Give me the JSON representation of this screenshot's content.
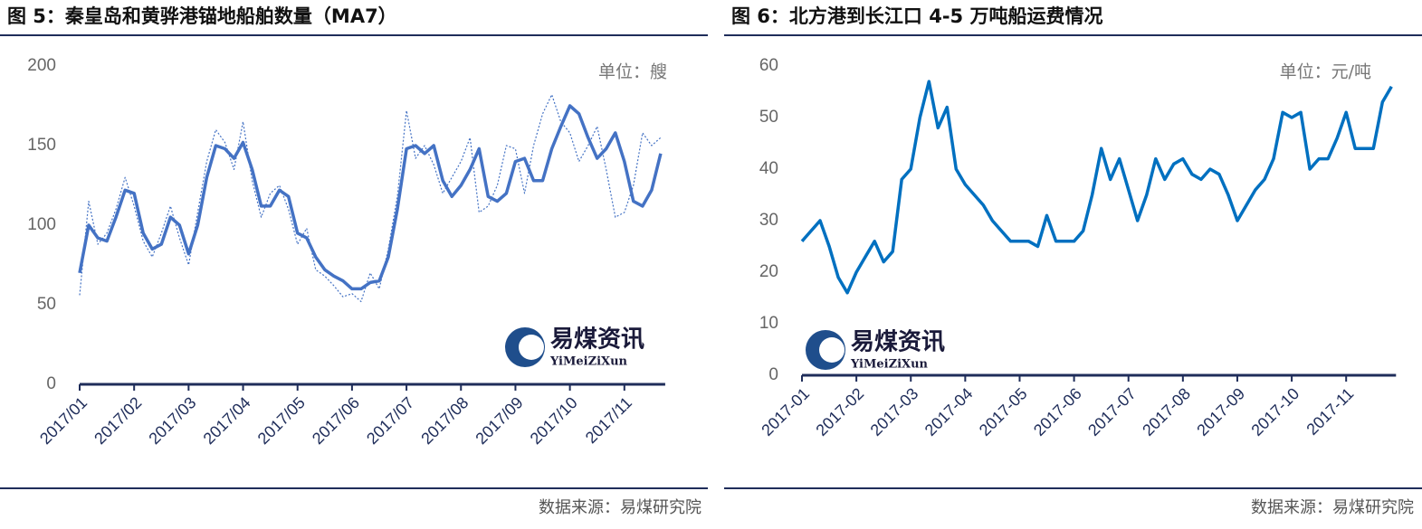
{
  "chart_data": [
    {
      "type": "line",
      "title": "图 5：秦皇岛和黄骅港锚地船舶数量（MA7）",
      "unit": "单位：艘",
      "watermark": "易煤资讯",
      "watermark_sub": "YiMeiZiXun",
      "source": "数据来源：易煤研究院",
      "categories": [
        "2017/01",
        null,
        null,
        null,
        null,
        null,
        "2017/02",
        null,
        null,
        null,
        null,
        null,
        "2017/03",
        null,
        null,
        null,
        null,
        null,
        "2017/04",
        null,
        null,
        null,
        null,
        null,
        "2017/05",
        null,
        null,
        null,
        null,
        null,
        "2017/06",
        null,
        null,
        null,
        null,
        null,
        "2017/07",
        null,
        null,
        null,
        null,
        null,
        "2017/08",
        null,
        null,
        null,
        null,
        null,
        "2017/09",
        null,
        null,
        null,
        null,
        null,
        "2017/10",
        null,
        null,
        null,
        null,
        null,
        "2017/11",
        null,
        null,
        null,
        null
      ],
      "ylim": [
        0,
        200
      ],
      "yticks": [
        0,
        50,
        100,
        150,
        200
      ],
      "series": [
        {
          "color": "#4472c4",
          "style": "dotted",
          "values": [
            56,
            115,
            88,
            95,
            110,
            130,
            112,
            90,
            80,
            95,
            112,
            92,
            75,
            108,
            140,
            160,
            152,
            135,
            165,
            128,
            105,
            120,
            125,
            110,
            88,
            98,
            72,
            68,
            62,
            55,
            57,
            52,
            70,
            60,
            85,
            118,
            172,
            142,
            150,
            138,
            120,
            130,
            140,
            155,
            108,
            112,
            125,
            150,
            148,
            120,
            150,
            170,
            182,
            165,
            158,
            140,
            150,
            162,
            135,
            105,
            108,
            125,
            158,
            150,
            155
          ]
        },
        {
          "color": "#4472c4",
          "style": "solid",
          "values": [
            70,
            100,
            92,
            90,
            105,
            122,
            120,
            95,
            85,
            88,
            105,
            100,
            82,
            100,
            130,
            150,
            148,
            142,
            152,
            135,
            112,
            112,
            122,
            118,
            95,
            92,
            80,
            72,
            68,
            65,
            60,
            60,
            64,
            65,
            80,
            110,
            148,
            150,
            145,
            150,
            128,
            118,
            125,
            135,
            148,
            118,
            115,
            120,
            140,
            142,
            128,
            128,
            148,
            162,
            175,
            170,
            155,
            142,
            148,
            158,
            140,
            115,
            112,
            122,
            145
          ]
        }
      ]
    },
    {
      "type": "line",
      "title": "图 6：北方港到长江口 4-5 万吨船运费情况",
      "unit": "单位：元/吨",
      "watermark": "易煤资讯",
      "watermark_sub": "YiMeiZiXun",
      "source": "数据来源：易煤研究院",
      "categories": [
        "2017-01",
        null,
        null,
        null,
        null,
        null,
        "2017-02",
        null,
        null,
        null,
        null,
        null,
        "2017-03",
        null,
        null,
        null,
        null,
        null,
        "2017-04",
        null,
        null,
        null,
        null,
        null,
        "2017-05",
        null,
        null,
        null,
        null,
        null,
        "2017-06",
        null,
        null,
        null,
        null,
        null,
        "2017-07",
        null,
        null,
        null,
        null,
        null,
        "2017-08",
        null,
        null,
        null,
        null,
        null,
        "2017-09",
        null,
        null,
        null,
        null,
        null,
        "2017-10",
        null,
        null,
        null,
        null,
        null,
        "2017-11",
        null,
        null,
        null,
        null,
        null
      ],
      "ylim": [
        0,
        60
      ],
      "yticks": [
        0,
        10,
        20,
        30,
        40,
        50,
        60
      ],
      "series": [
        {
          "color": "#0070c0",
          "style": "solid",
          "values": [
            26,
            28,
            30,
            25,
            19,
            16,
            20,
            23,
            26,
            22,
            24,
            38,
            40,
            50,
            57,
            48,
            52,
            40,
            37,
            35,
            33,
            30,
            28,
            26,
            26,
            26,
            25,
            31,
            26,
            26,
            26,
            28,
            35,
            44,
            38,
            42,
            36,
            30,
            35,
            42,
            38,
            41,
            42,
            39,
            38,
            40,
            39,
            35,
            30,
            33,
            36,
            38,
            42,
            51,
            50,
            51,
            40,
            42,
            42,
            46,
            51,
            44,
            44,
            44,
            53,
            56
          ]
        }
      ]
    }
  ]
}
